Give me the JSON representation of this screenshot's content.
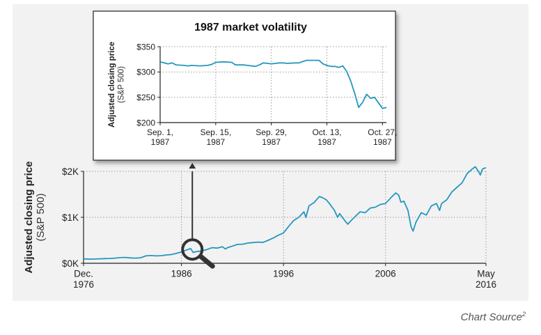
{
  "chart_data": [
    {
      "type": "line",
      "ylabel": "Adjusted closing price",
      "ylabel_sub": "(S&P 500)",
      "x_ticks": [
        {
          "x": 1976.9,
          "lines": [
            "Dec.",
            "1976"
          ]
        },
        {
          "x": 1986.5,
          "lines": [
            "1986"
          ]
        },
        {
          "x": 1996.5,
          "lines": [
            "1996"
          ]
        },
        {
          "x": 2006.5,
          "lines": [
            "2006"
          ]
        },
        {
          "x": 2016.35,
          "lines": [
            "May",
            "2016"
          ]
        }
      ],
      "y_ticks": [
        {
          "y": 0,
          "label": "$0K"
        },
        {
          "y": 1000,
          "label": "$1K"
        },
        {
          "y": 2000,
          "label": "$2K"
        }
      ],
      "xlim": [
        1976.9,
        2016.35
      ],
      "ylim": [
        0,
        2000
      ],
      "grid": true,
      "color": "#2596be",
      "magnifier_at": {
        "x": 1987.7,
        "y": 300
      },
      "x": [
        1976.9,
        1977.5,
        1978,
        1978.5,
        1979,
        1979.5,
        1980,
        1980.5,
        1981,
        1981.5,
        1982,
        1982.5,
        1983,
        1983.5,
        1984,
        1984.5,
        1985,
        1985.5,
        1986,
        1986.5,
        1987,
        1987.4,
        1987.65,
        1987.8,
        1988,
        1988.5,
        1989,
        1989.5,
        1990,
        1990.5,
        1990.8,
        1991,
        1991.5,
        1992,
        1992.5,
        1993,
        1993.5,
        1994,
        1994.5,
        1995,
        1995.5,
        1996,
        1996.5,
        1997,
        1997.5,
        1998,
        1998.5,
        1998.7,
        1999,
        1999.5,
        2000,
        2000.3,
        2000.7,
        2001,
        2001.5,
        2001.8,
        2002,
        2002.5,
        2002.8,
        2003,
        2003.5,
        2004,
        2004.5,
        2005,
        2005.5,
        2006,
        2006.5,
        2007,
        2007.5,
        2007.8,
        2008,
        2008.3,
        2008.7,
        2009,
        2009.2,
        2009.5,
        2010,
        2010.5,
        2011,
        2011.5,
        2011.8,
        2012,
        2012.5,
        2013,
        2013.5,
        2014,
        2014.5,
        2015,
        2015.3,
        2015.6,
        2015.8,
        2016,
        2016.35
      ],
      "y": [
        95,
        90,
        92,
        97,
        102,
        105,
        112,
        122,
        128,
        116,
        112,
        120,
        160,
        168,
        160,
        165,
        180,
        190,
        215,
        245,
        290,
        320,
        235,
        245,
        255,
        270,
        300,
        340,
        330,
        360,
        310,
        340,
        375,
        410,
        415,
        440,
        450,
        460,
        455,
        500,
        550,
        610,
        660,
        800,
        930,
        1000,
        1120,
        1000,
        1250,
        1320,
        1450,
        1430,
        1380,
        1300,
        1150,
        1000,
        1080,
        930,
        850,
        900,
        1010,
        1120,
        1100,
        1200,
        1220,
        1280,
        1300,
        1420,
        1530,
        1480,
        1330,
        1350,
        1150,
        800,
        700,
        900,
        1100,
        1050,
        1250,
        1300,
        1150,
        1300,
        1380,
        1550,
        1650,
        1750,
        1950,
        2050,
        2100,
        2000,
        1920,
        2050,
        2080
      ]
    },
    {
      "type": "line",
      "title": "1987 market volatility",
      "ylabel": "Adjusted closing price",
      "ylabel_sub": "(S&P 500)",
      "x_ticks": [
        {
          "x": 0,
          "lines": [
            "Sep. 1,",
            "1987"
          ]
        },
        {
          "x": 14,
          "lines": [
            "Sep. 15,",
            "1987"
          ]
        },
        {
          "x": 28,
          "lines": [
            "Sep. 29,",
            "1987"
          ]
        },
        {
          "x": 42,
          "lines": [
            "Oct. 13,",
            "1987"
          ]
        },
        {
          "x": 56,
          "lines": [
            "Oct. 27,",
            "1987"
          ]
        }
      ],
      "y_ticks": [
        {
          "y": 200,
          "label": "$200"
        },
        {
          "y": 250,
          "label": "$250"
        },
        {
          "y": 300,
          "label": "$300"
        },
        {
          "y": 350,
          "label": "$350"
        }
      ],
      "xlim": [
        0,
        57
      ],
      "ylim": [
        200,
        350
      ],
      "grid": true,
      "color": "#2596be",
      "x": [
        0,
        2,
        3,
        4,
        6,
        7,
        8,
        10,
        12,
        13,
        14,
        16,
        18,
        19,
        20,
        21,
        22,
        24,
        25,
        26,
        28,
        29,
        30,
        31,
        32,
        34,
        35,
        36,
        37,
        38,
        40,
        41,
        42,
        43,
        44,
        45,
        46,
        47,
        48,
        49,
        50,
        51,
        52,
        53,
        54,
        55,
        56,
        57
      ],
      "y": [
        320,
        316,
        318,
        314,
        313,
        312,
        313,
        312,
        313,
        315,
        319,
        320,
        319,
        314,
        314,
        314,
        313,
        311,
        314,
        318,
        316,
        317,
        318,
        318,
        317,
        318,
        318,
        321,
        323,
        323,
        323,
        316,
        313,
        311,
        311,
        309,
        312,
        301,
        282,
        258,
        230,
        240,
        256,
        248,
        250,
        239,
        228,
        230
      ]
    }
  ],
  "source_label": "Chart Source",
  "source_sup": "2"
}
